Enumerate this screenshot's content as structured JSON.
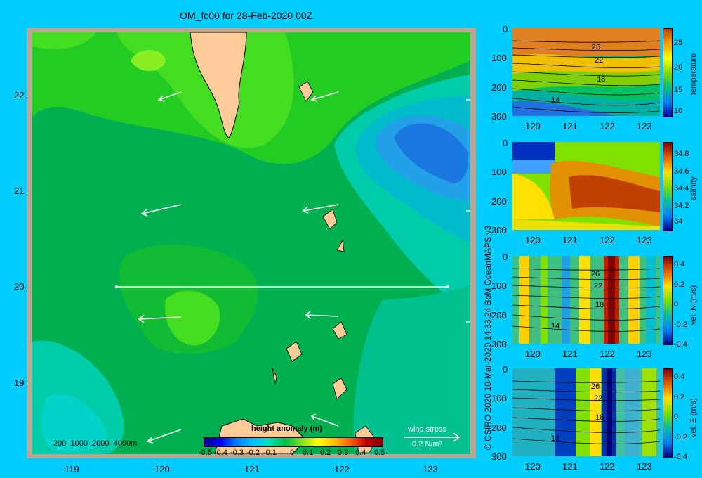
{
  "title": "OM_fc00 for 28-Feb-2020 00Z",
  "map": {
    "lon_ticks": [
      "119",
      "120",
      "121",
      "122",
      "123"
    ],
    "lat_ticks": [
      "22",
      "21",
      "20",
      "19"
    ],
    "depth_legend": "200  1000  2000  4000m",
    "colorbar_title": "height anomaly (m)",
    "colorbar_ticks": [
      "-0.5",
      "-0.4",
      "-0.3",
      "-0.2",
      "-0.1",
      "0",
      "0.1",
      "0.2",
      "0.3",
      "0.4",
      "0.5"
    ],
    "wind_stress_label": "wind stress",
    "wind_stress_scale": "0.2 N/m²"
  },
  "credit": "© CSIRO 2020  10-Mar-2020 14:33:24 BoM OceanMAPS v3",
  "panels": [
    {
      "name": "temperature",
      "label": "temperature",
      "cb_ticks": [
        "25",
        "20",
        "15",
        "10"
      ],
      "contours": [
        "26",
        "22",
        "18",
        "14"
      ]
    },
    {
      "name": "salinity",
      "label": "salinity",
      "cb_ticks": [
        "34.8",
        "34.6",
        "34.4",
        "34.2",
        "34"
      ],
      "contours": []
    },
    {
      "name": "velocity-north",
      "label": "vel. N (m/s)",
      "cb_ticks": [
        "0.4",
        "0.2",
        "0",
        "-0.2",
        "-0.4"
      ],
      "contours": [
        "26",
        "22",
        "18",
        "14"
      ]
    },
    {
      "name": "velocity-east",
      "label": "vel. E (m/s)",
      "cb_ticks": [
        "0.4",
        "0.2",
        "0",
        "-0.2",
        "-0.4"
      ],
      "contours": [
        "26",
        "22",
        "18",
        "14"
      ]
    }
  ],
  "panel_axis": {
    "depth_ticks": [
      "0",
      "100",
      "200",
      "300"
    ],
    "lon_ticks": [
      "120",
      "121",
      "122",
      "123"
    ]
  }
}
